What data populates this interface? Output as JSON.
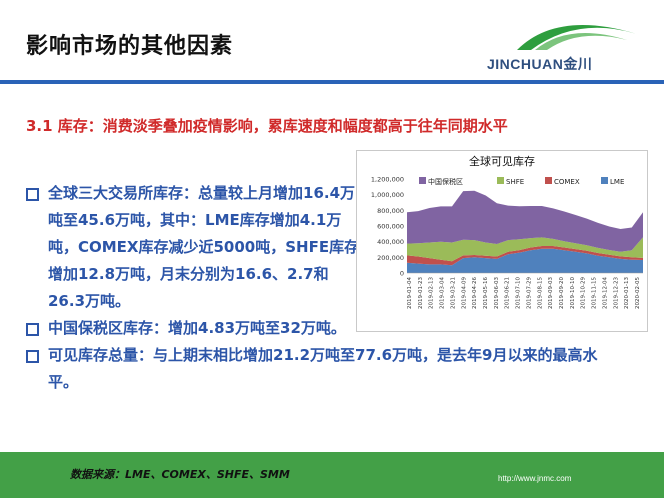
{
  "slide": {
    "title": "影响市场的其他因素",
    "logo_text": "JINCHUAN金川",
    "section_title": "3.1 库存：消费淡季叠加疫情影响，累库速度和幅度都高于往年同期水平",
    "bullets": [
      "全球三大交易所库存：总量较上月增加16.4万吨至45.6万吨，其中：LME库存增加4.1万吨，COMEX库存减少近5000吨，SHFE库存增加12.8万吨，月末分别为16.6、2.7和26.3万吨。",
      "中国保税区库存：增加4.83万吨至32万吨。",
      "可见库存总量：与上期末相比增加21.2万吨至77.6万吨，是去年9月以来的最高水平。"
    ],
    "footer_source": "数据来源：LME、COMEX、SHFE、SMM",
    "footer_url": "http://www.jnmc.com"
  },
  "colors": {
    "title": "#111111",
    "section_title": "#d02a2a",
    "bullet_text": "#2c55a8",
    "header_rule": "#2a63b7",
    "footer_bg": "#43a047",
    "series_bonded": "#8064a2",
    "series_shfe": "#9bbb59",
    "series_comex": "#c0504d",
    "series_lme": "#4f81bd"
  },
  "chart_data": {
    "type": "area",
    "stacked": true,
    "title": "全球可见库存",
    "legend_position": "top",
    "ylim": [
      0,
      1200000
    ],
    "yticks": [
      "1,200,000",
      "1,000,000",
      "800,000",
      "600,000",
      "400,000",
      "200,000",
      "0"
    ],
    "x_tick_labels": [
      "2019-01-04",
      "2019-01-23",
      "2019-02-13",
      "2019-03-04",
      "2019-03-21",
      "2019-04-09",
      "2019-04-26",
      "2019-05-16",
      "2019-06-03",
      "2019-06-21",
      "2019-07-10",
      "2019-07-29",
      "2019-08-15",
      "2019-09-03",
      "2019-09-20",
      "2019-10-10",
      "2019-10-29",
      "2019-11-15",
      "2019-12-04",
      "2019-12-23",
      "2020-01-13",
      "2020-02-05"
    ],
    "series": [
      {
        "name": "LME",
        "values": [
          130000,
          120000,
          110000,
          110000,
          100000,
          190000,
          200000,
          190000,
          180000,
          240000,
          260000,
          290000,
          310000,
          310000,
          290000,
          270000,
          250000,
          220000,
          200000,
          180000,
          170000,
          166000
        ]
      },
      {
        "name": "COMEX",
        "values": [
          95000,
          90000,
          80000,
          60000,
          50000,
          35000,
          30000,
          30000,
          30000,
          30000,
          32000,
          35000,
          35000,
          35000,
          35000,
          35000,
          35000,
          35000,
          33000,
          32000,
          31000,
          27000
        ]
      },
      {
        "name": "SHFE",
        "values": [
          150000,
          170000,
          200000,
          230000,
          240000,
          200000,
          190000,
          170000,
          160000,
          150000,
          140000,
          120000,
          110000,
          90000,
          80000,
          75000,
          70000,
          65000,
          60000,
          60000,
          90000,
          263000
        ]
      },
      {
        "name": "中国保税区",
        "values": [
          400000,
          410000,
          440000,
          450000,
          460000,
          620000,
          630000,
          600000,
          520000,
          440000,
          420000,
          410000,
          400000,
          390000,
          380000,
          360000,
          340000,
          320000,
          300000,
          290000,
          290000,
          320000
        ]
      }
    ]
  }
}
